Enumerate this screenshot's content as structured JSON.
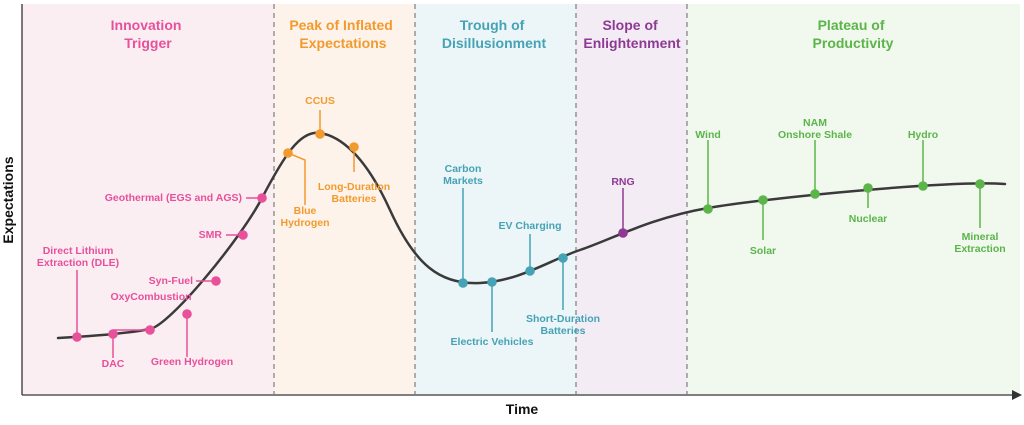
{
  "colors": {
    "trigger": "#e8509a",
    "peak": "#f39a2e",
    "trough": "#45a3b5",
    "slope": "#8e3a93",
    "plateau": "#5bb54a",
    "curve": "#3a3a3a"
  },
  "axes": {
    "x_label": "Time",
    "y_label": "Expectations"
  },
  "phases": [
    {
      "id": "trigger",
      "line1": "Innovation",
      "line2": "Trigger"
    },
    {
      "id": "peak",
      "line1": "Peak of Inflated",
      "line2": "Expectations"
    },
    {
      "id": "trough",
      "line1": "Trough of",
      "line2": "Disillusionment"
    },
    {
      "id": "slope",
      "line1": "Slope of",
      "line2": "Enlightenment"
    },
    {
      "id": "plateau",
      "line1": "Plateau of",
      "line2": "Productivity"
    }
  ],
  "technologies": [
    {
      "id": "dle",
      "phase": "trigger",
      "lines": [
        "Direct Lithium",
        "Extraction (DLE)"
      ]
    },
    {
      "id": "dac",
      "phase": "trigger",
      "lines": [
        "DAC"
      ]
    },
    {
      "id": "oxy",
      "phase": "trigger",
      "lines": [
        "OxyCombustion"
      ]
    },
    {
      "id": "greenh2",
      "phase": "trigger",
      "lines": [
        "Green Hydrogen"
      ]
    },
    {
      "id": "synfuel",
      "phase": "trigger",
      "lines": [
        "Syn-Fuel"
      ]
    },
    {
      "id": "smr",
      "phase": "trigger",
      "lines": [
        "SMR"
      ]
    },
    {
      "id": "geo",
      "phase": "trigger",
      "lines": [
        "Geothermal (EGS and AGS)"
      ]
    },
    {
      "id": "blueh2",
      "phase": "peak",
      "lines": [
        "Blue",
        "Hydrogen"
      ]
    },
    {
      "id": "ccus",
      "phase": "peak",
      "lines": [
        "CCUS"
      ]
    },
    {
      "id": "ldb",
      "phase": "peak",
      "lines": [
        "Long-Duration",
        "Batteries"
      ]
    },
    {
      "id": "carbon",
      "phase": "trough",
      "lines": [
        "Carbon",
        "Markets"
      ]
    },
    {
      "id": "ev",
      "phase": "trough",
      "lines": [
        "Electric Vehicles"
      ]
    },
    {
      "id": "evc",
      "phase": "trough",
      "lines": [
        "EV Charging"
      ]
    },
    {
      "id": "sdb",
      "phase": "trough",
      "lines": [
        "Short-Duration",
        "Batteries"
      ]
    },
    {
      "id": "rng",
      "phase": "slope",
      "lines": [
        "RNG"
      ]
    },
    {
      "id": "wind",
      "phase": "plateau",
      "lines": [
        "Wind"
      ]
    },
    {
      "id": "solar",
      "phase": "plateau",
      "lines": [
        "Solar"
      ]
    },
    {
      "id": "nam",
      "phase": "plateau",
      "lines": [
        "NAM",
        "Onshore Shale"
      ]
    },
    {
      "id": "nuclear",
      "phase": "plateau",
      "lines": [
        "Nuclear"
      ]
    },
    {
      "id": "hydro",
      "phase": "plateau",
      "lines": [
        "Hydro"
      ]
    },
    {
      "id": "mineral",
      "phase": "plateau",
      "lines": [
        "Mineral",
        "Extraction"
      ]
    }
  ]
}
